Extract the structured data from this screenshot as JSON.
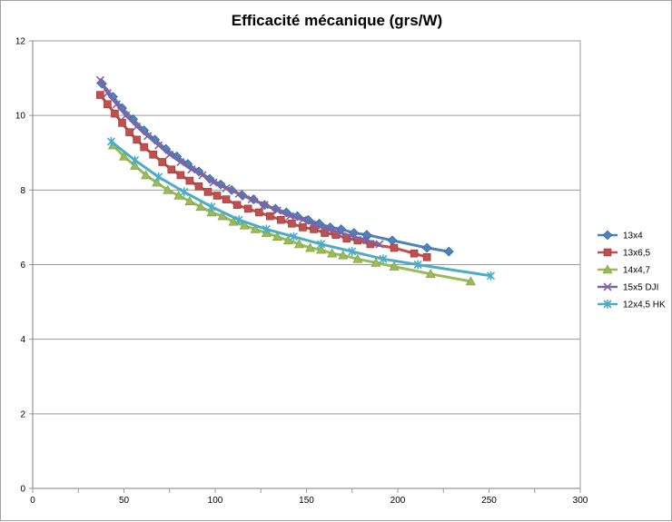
{
  "chart_data": {
    "type": "line",
    "title": "Efficacité mécanique (grs/W)",
    "xlabel": "",
    "ylabel": "",
    "xlim": [
      0,
      300
    ],
    "ylim": [
      0,
      12
    ],
    "xticks": [
      0,
      50,
      100,
      150,
      200,
      250,
      300
    ],
    "yticks": [
      0,
      2,
      4,
      6,
      8,
      10,
      12
    ],
    "grid": "horizontal",
    "legend_position": "right",
    "series": [
      {
        "name": "13x4",
        "color": "#4f81bd",
        "marker": "diamond",
        "x": [
          38,
          44,
          49,
          55,
          61,
          67,
          73,
          79,
          85,
          91,
          97,
          103,
          109,
          115,
          121,
          127,
          133,
          139,
          145,
          151,
          157,
          163,
          169,
          176,
          183,
          197,
          216,
          228
        ],
        "y": [
          10.85,
          10.5,
          10.2,
          9.9,
          9.6,
          9.35,
          9.1,
          8.9,
          8.7,
          8.5,
          8.3,
          8.15,
          8.0,
          7.85,
          7.75,
          7.6,
          7.5,
          7.4,
          7.3,
          7.2,
          7.1,
          7.0,
          6.95,
          6.85,
          6.8,
          6.65,
          6.45,
          6.35
        ]
      },
      {
        "name": "13x6,5",
        "color": "#c0504d",
        "marker": "square",
        "x": [
          37,
          41,
          45,
          49,
          53,
          57,
          61,
          66,
          71,
          76,
          81,
          86,
          91,
          96,
          101,
          106,
          112,
          118,
          124,
          130,
          136,
          142,
          148,
          154,
          160,
          166,
          172,
          178,
          185,
          198,
          209,
          216
        ],
        "y": [
          10.55,
          10.3,
          10.05,
          9.8,
          9.55,
          9.35,
          9.15,
          8.95,
          8.75,
          8.55,
          8.4,
          8.25,
          8.1,
          7.95,
          7.85,
          7.75,
          7.6,
          7.5,
          7.4,
          7.3,
          7.2,
          7.1,
          7.0,
          6.95,
          6.85,
          6.8,
          6.7,
          6.65,
          6.55,
          6.45,
          6.3,
          6.2
        ]
      },
      {
        "name": "14x4,7",
        "color": "#9bbb59",
        "marker": "triangle",
        "x": [
          44,
          50,
          56,
          62,
          68,
          74,
          80,
          86,
          92,
          98,
          104,
          110,
          116,
          122,
          128,
          134,
          140,
          146,
          152,
          158,
          164,
          170,
          178,
          188,
          198,
          218,
          240
        ],
        "y": [
          9.2,
          8.9,
          8.65,
          8.4,
          8.2,
          8.0,
          7.85,
          7.7,
          7.55,
          7.4,
          7.3,
          7.15,
          7.05,
          6.95,
          6.85,
          6.75,
          6.65,
          6.55,
          6.45,
          6.4,
          6.3,
          6.25,
          6.15,
          6.05,
          5.95,
          5.75,
          5.55
        ]
      },
      {
        "name": "15x5 DJI",
        "color": "#8064a2",
        "marker": "x",
        "x": [
          37,
          41,
          46,
          51,
          57,
          63,
          69,
          75,
          81,
          87,
          93,
          99,
          106,
          113,
          120,
          127,
          134,
          141,
          148,
          155,
          162,
          169,
          176,
          183,
          190
        ],
        "y": [
          10.95,
          10.6,
          10.3,
          10.0,
          9.7,
          9.45,
          9.2,
          8.95,
          8.75,
          8.55,
          8.4,
          8.2,
          8.05,
          7.9,
          7.75,
          7.6,
          7.45,
          7.3,
          7.2,
          7.05,
          6.95,
          6.85,
          6.75,
          6.65,
          6.55
        ]
      },
      {
        "name": "12x4,5 HK",
        "color": "#4bacc6",
        "marker": "asterisk",
        "x": [
          43,
          56,
          69,
          83,
          98,
          113,
          128,
          143,
          158,
          175,
          192,
          211,
          251
        ],
        "y": [
          9.3,
          8.8,
          8.35,
          7.95,
          7.55,
          7.2,
          6.95,
          6.75,
          6.55,
          6.35,
          6.15,
          6.0,
          5.7
        ]
      }
    ]
  }
}
